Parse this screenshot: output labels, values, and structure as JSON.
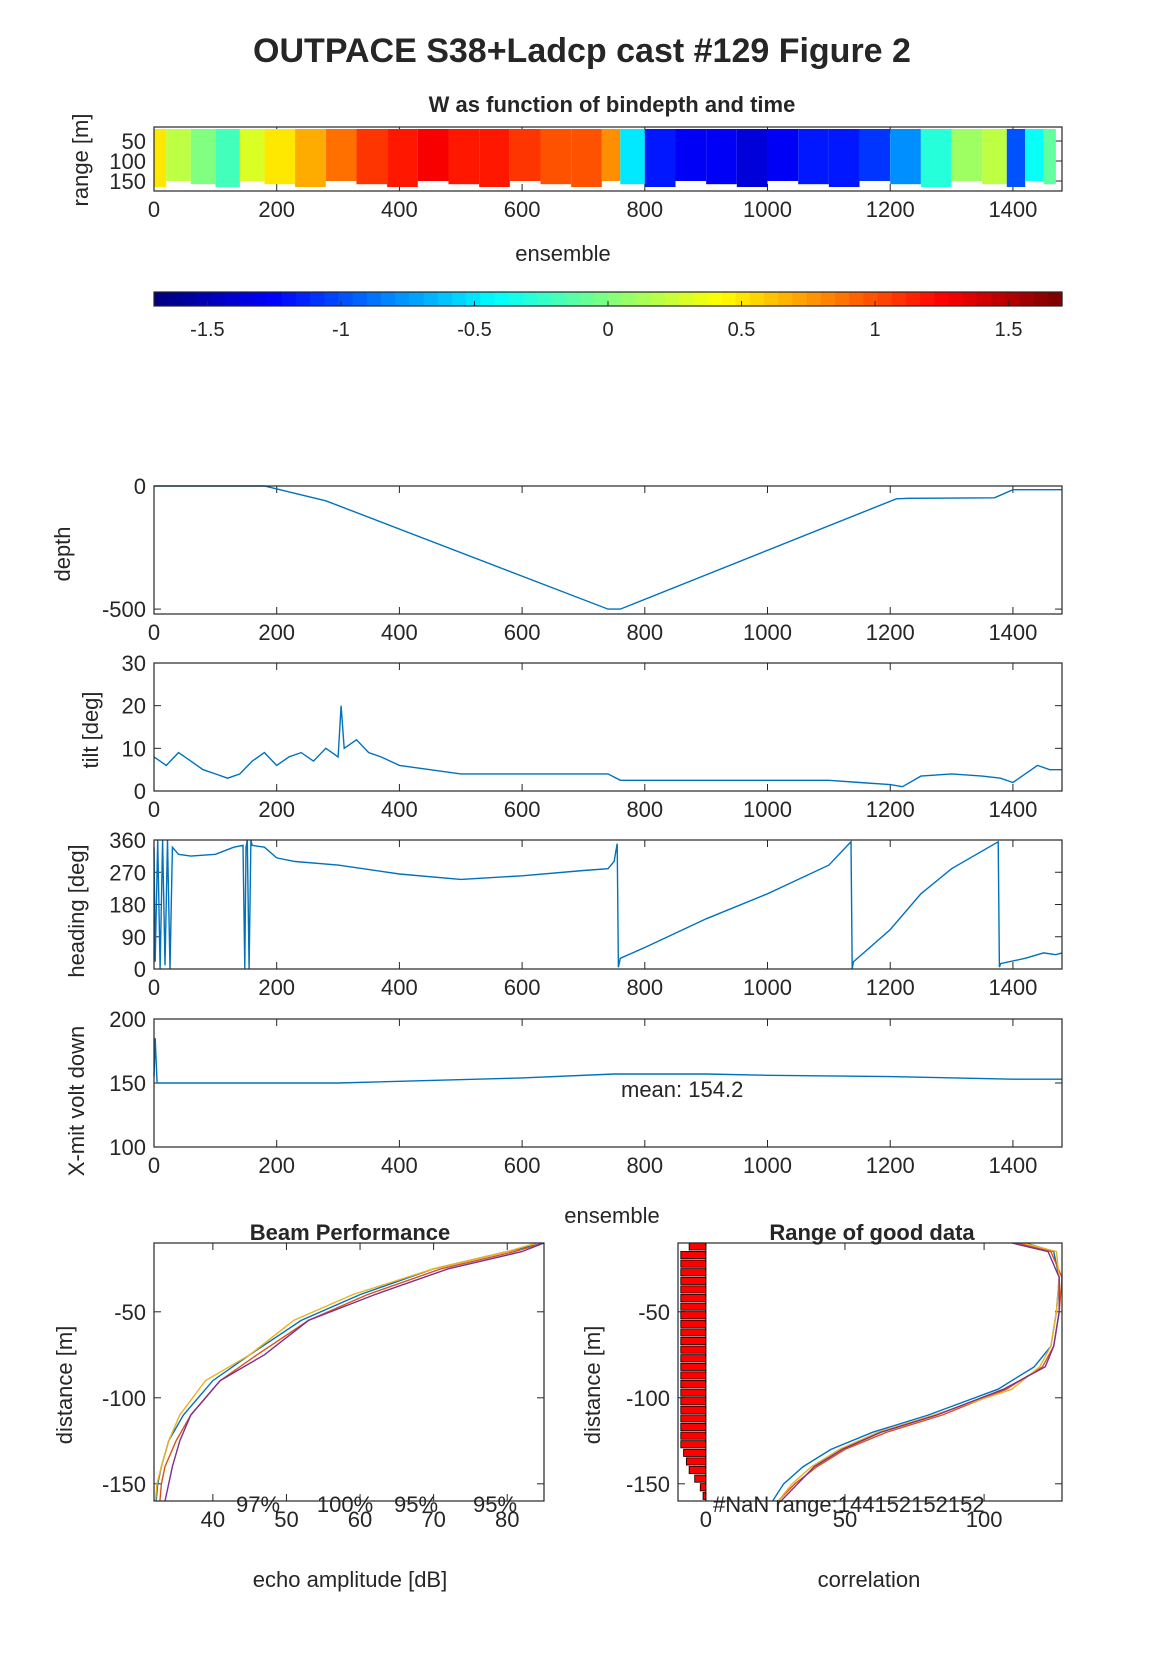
{
  "figure": {
    "title": "OUTPACE S38+Ladcp cast #129 Figure 2"
  },
  "colors": {
    "series": [
      "#0072BD",
      "#D95319",
      "#EDB120",
      "#7E2F8E"
    ],
    "axis": "#262626",
    "bar": "#ff0000"
  },
  "chart_data": [
    {
      "id": "w",
      "type": "heatmap",
      "title": "W as function of bindepth and time",
      "xlabel": "ensemble",
      "ylabel": "range [m]",
      "xlim": [
        0,
        1480
      ],
      "ylim": [
        175,
        15
      ],
      "y_reversed": true,
      "xticks": [
        0,
        200,
        400,
        600,
        800,
        1000,
        1200,
        1400
      ],
      "yticks": [
        50,
        100,
        150
      ],
      "colormap": "jet",
      "clim": [
        -1.7,
        1.7
      ],
      "x_blocks": [
        0,
        20,
        60,
        100,
        140,
        180,
        230,
        280,
        330,
        380,
        430,
        480,
        530,
        580,
        630,
        680,
        730,
        760,
        800,
        850,
        900,
        950,
        1000,
        1050,
        1100,
        1150,
        1200,
        1250,
        1300,
        1350,
        1390,
        1420,
        1450,
        1470
      ],
      "w_blocks": [
        0.5,
        0.2,
        0.0,
        -0.2,
        0.3,
        0.5,
        0.7,
        0.9,
        1.1,
        1.2,
        1.3,
        1.2,
        1.2,
        1.1,
        1.0,
        1.0,
        0.8,
        -0.5,
        -1.2,
        -1.3,
        -1.3,
        -1.4,
        -1.3,
        -1.2,
        -1.2,
        -1.1,
        -0.8,
        -0.3,
        0.1,
        0.2,
        -1.0,
        -0.4,
        -0.1
      ]
    },
    {
      "id": "colorbar",
      "type": "colorbar",
      "colormap": "jet",
      "clim": [
        -1.7,
        1.7
      ],
      "ticks": [
        -1.5,
        -1,
        -0.5,
        0,
        0.5,
        1,
        1.5
      ],
      "ticklabels": [
        "-1.5",
        "-1",
        "-0.5",
        "0",
        "0.5",
        "1",
        "1.5"
      ]
    },
    {
      "id": "depth",
      "type": "line",
      "xlabel": "",
      "ylabel": "depth",
      "xlim": [
        0,
        1480
      ],
      "ylim": [
        -520,
        0
      ],
      "xticks": [
        0,
        200,
        400,
        600,
        800,
        1000,
        1200,
        1400
      ],
      "yticks": [
        0,
        -500
      ],
      "yticklabels": [
        "0",
        "-500"
      ],
      "series": [
        {
          "x": [
            0,
            180,
            280,
            740,
            760,
            1210,
            1230,
            1370,
            1400,
            1480
          ],
          "y": [
            0,
            0,
            -60,
            -500,
            -500,
            -52,
            -50,
            -48,
            -15,
            -15
          ]
        }
      ]
    },
    {
      "id": "tilt",
      "type": "line",
      "xlabel": "",
      "ylabel": "tilt [deg]",
      "xlim": [
        0,
        1480
      ],
      "ylim": [
        0,
        30
      ],
      "xticks": [
        0,
        200,
        400,
        600,
        800,
        1000,
        1200,
        1400
      ],
      "yticks": [
        0,
        10,
        20,
        30
      ],
      "series": [
        {
          "x": [
            0,
            20,
            40,
            60,
            80,
            100,
            120,
            140,
            160,
            180,
            200,
            220,
            240,
            260,
            280,
            300,
            305,
            310,
            330,
            350,
            370,
            400,
            450,
            500,
            550,
            600,
            650,
            700,
            740,
            760,
            800,
            900,
            1000,
            1100,
            1150,
            1200,
            1220,
            1250,
            1300,
            1350,
            1380,
            1400,
            1420,
            1440,
            1460,
            1480
          ],
          "y": [
            8,
            6,
            9,
            7,
            5,
            4,
            3,
            4,
            7,
            9,
            6,
            8,
            9,
            7,
            10,
            8,
            20,
            10,
            12,
            9,
            8,
            6,
            5,
            4,
            4,
            4,
            4,
            4,
            4,
            2.5,
            2.5,
            2.5,
            2.5,
            2.5,
            2,
            1.5,
            1,
            3.5,
            4,
            3.5,
            3,
            2,
            4,
            6,
            5,
            5
          ]
        }
      ]
    },
    {
      "id": "heading",
      "type": "line",
      "xlabel": "",
      "ylabel": "heading [deg]",
      "xlim": [
        0,
        1480
      ],
      "ylim": [
        0,
        360
      ],
      "xticks": [
        0,
        200,
        400,
        600,
        800,
        1000,
        1200,
        1400
      ],
      "yticks": [
        0,
        90,
        180,
        270,
        360
      ],
      "series": [
        {
          "x": [
            0,
            2,
            6,
            10,
            14,
            18,
            22,
            26,
            30,
            40,
            60,
            100,
            130,
            145,
            148,
            150,
            152,
            155,
            158,
            160,
            180,
            200,
            230,
            300,
            400,
            500,
            600,
            700,
            740,
            750,
            755,
            757,
            760,
            800,
            900,
            1000,
            1100,
            1136,
            1138,
            1140,
            1200,
            1250,
            1300,
            1376,
            1378,
            1380,
            1420,
            1450,
            1470,
            1480
          ],
          "y": [
            340,
            20,
            360,
            0,
            360,
            10,
            360,
            0,
            340,
            320,
            315,
            320,
            340,
            345,
            0,
            340,
            360,
            0,
            360,
            345,
            340,
            310,
            300,
            290,
            265,
            250,
            260,
            275,
            280,
            300,
            350,
            5,
            30,
            60,
            140,
            210,
            290,
            355,
            0,
            20,
            110,
            210,
            280,
            355,
            5,
            15,
            30,
            45,
            40,
            45
          ]
        }
      ]
    },
    {
      "id": "volt",
      "type": "line",
      "xlabel": "ensemble",
      "ylabel": "X-mit volt down",
      "xlim": [
        0,
        1480
      ],
      "ylim": [
        100,
        200
      ],
      "xticks": [
        0,
        200,
        400,
        600,
        800,
        1000,
        1200,
        1400
      ],
      "yticks": [
        100,
        150,
        200
      ],
      "annotation": "mean: 154.2",
      "series": [
        {
          "x": [
            0,
            2,
            5,
            10,
            50,
            300,
            600,
            750,
            900,
            1000,
            1200,
            1400,
            1480
          ],
          "y": [
            155,
            185,
            150,
            150,
            150,
            150,
            154,
            157,
            157,
            156,
            155,
            153,
            153
          ]
        }
      ]
    },
    {
      "id": "beam",
      "type": "line",
      "title": "Beam Performance",
      "xlabel": "echo amplitude [dB]",
      "ylabel": "distance [m]",
      "xlim": [
        32,
        85
      ],
      "ylim": [
        -160,
        -10
      ],
      "xticks": [
        40,
        50,
        60,
        70,
        80
      ],
      "yticks": [
        -50,
        -100,
        -150
      ],
      "beam_percent": [
        "97%",
        "100%",
        "95%",
        "95%"
      ],
      "series": [
        {
          "x": [
            85,
            80,
            70,
            60,
            52,
            45,
            40,
            36,
            34,
            33,
            32.5,
            32.3
          ],
          "y": [
            -10,
            -15,
            -25,
            -40,
            -55,
            -75,
            -90,
            -110,
            -125,
            -140,
            -150,
            -160
          ]
        },
        {
          "x": [
            85,
            81,
            71,
            61,
            53,
            46,
            41,
            37,
            35,
            33.5,
            33,
            32.8
          ],
          "y": [
            -10,
            -15,
            -25,
            -40,
            -55,
            -75,
            -90,
            -110,
            -125,
            -140,
            -150,
            -160
          ]
        },
        {
          "x": [
            84,
            80,
            70,
            59,
            51,
            45,
            39,
            35.5,
            34,
            33,
            32.4,
            32.2
          ],
          "y": [
            -10,
            -15,
            -25,
            -40,
            -55,
            -75,
            -90,
            -110,
            -125,
            -140,
            -150,
            -160
          ]
        },
        {
          "x": [
            85,
            82,
            72,
            62,
            53,
            47,
            41,
            37,
            35.5,
            34.5,
            34,
            33.5
          ],
          "y": [
            -10,
            -15,
            -25,
            -40,
            -55,
            -75,
            -90,
            -110,
            -125,
            -140,
            -150,
            -160
          ]
        }
      ]
    },
    {
      "id": "rangegood",
      "type": "line",
      "title": "Range of good data",
      "xlabel": "correlation",
      "ylabel": "distance [m]",
      "xlim": [
        -10,
        128
      ],
      "ylim": [
        -160,
        -10
      ],
      "xticks": [
        0,
        50,
        100
      ],
      "yticks": [
        -50,
        -100,
        -150
      ],
      "annotation": "#NaN range:144152152152",
      "bars": {
        "y": [
          -12,
          -17,
          -22,
          -27,
          -32,
          -37,
          -42,
          -47,
          -52,
          -57,
          -62,
          -67,
          -72,
          -77,
          -82,
          -87,
          -92,
          -97,
          -102,
          -107,
          -112,
          -117,
          -122,
          -127,
          -132,
          -137,
          -142,
          -147,
          -152,
          -157
        ],
        "w": [
          6,
          9,
          9,
          9,
          9,
          9,
          9,
          9,
          9,
          9,
          9,
          9,
          9,
          9,
          9,
          9,
          9,
          9,
          9,
          9,
          9,
          9,
          9,
          9,
          8,
          7,
          6,
          4,
          2,
          1
        ]
      },
      "series": [
        {
          "x": [
            115,
            125,
            127,
            126,
            124,
            118,
            105,
            80,
            60,
            45,
            35,
            28,
            24
          ],
          "y": [
            -10,
            -15,
            -30,
            -50,
            -70,
            -82,
            -95,
            -110,
            -120,
            -130,
            -140,
            -150,
            -160
          ]
        },
        {
          "x": [
            112,
            124,
            128,
            127,
            125,
            121,
            108,
            85,
            65,
            50,
            40,
            32,
            26
          ],
          "y": [
            -10,
            -15,
            -30,
            -50,
            -70,
            -82,
            -95,
            -110,
            -120,
            -130,
            -140,
            -150,
            -160
          ]
        },
        {
          "x": [
            114,
            126,
            127,
            126,
            124,
            120,
            110,
            82,
            62,
            48,
            38,
            31,
            26
          ],
          "y": [
            -10,
            -15,
            -30,
            -50,
            -70,
            -82,
            -95,
            -110,
            -120,
            -130,
            -140,
            -150,
            -160
          ]
        },
        {
          "x": [
            110,
            123,
            127,
            127,
            125,
            122,
            107,
            83,
            63,
            49,
            39,
            33,
            27
          ],
          "y": [
            -10,
            -15,
            -30,
            -50,
            -70,
            -82,
            -95,
            -110,
            -120,
            -130,
            -140,
            -150,
            -160
          ]
        }
      ]
    }
  ]
}
